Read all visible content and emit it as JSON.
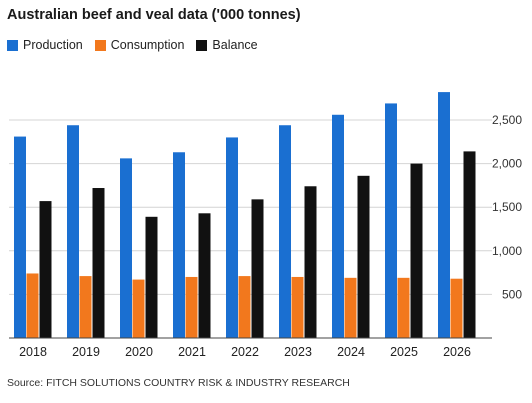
{
  "title": "Australian beef and veal data ('000 tonnes)",
  "source": "Source: FITCH SOLUTIONS COUNTRY RISK & INDUSTRY RESEARCH",
  "chart_data": {
    "type": "bar",
    "title": "Australian beef and veal data ('000 tonnes)",
    "xlabel": "",
    "ylabel": "",
    "categories": [
      "2018",
      "2019",
      "2020",
      "2021",
      "2022",
      "2023",
      "2024",
      "2025",
      "2026"
    ],
    "series": [
      {
        "name": "Production",
        "color": "#1a6fd1",
        "values": [
          2310,
          2440,
          2060,
          2130,
          2300,
          2440,
          2560,
          2690,
          2820
        ]
      },
      {
        "name": "Consumption",
        "color": "#f2781d",
        "values": [
          740,
          710,
          670,
          700,
          710,
          700,
          690,
          690,
          680
        ]
      },
      {
        "name": "Balance",
        "color": "#111111",
        "values": [
          1570,
          1720,
          1390,
          1430,
          1590,
          1740,
          1860,
          2000,
          2140
        ]
      }
    ],
    "ylim": [
      0,
      2800
    ],
    "yticks": [
      500,
      1000,
      1500,
      2000,
      2500
    ],
    "ytick_labels": [
      "500",
      "1,000",
      "1,500",
      "2,000",
      "2,500"
    ],
    "grid": true,
    "legend_position": "top-left",
    "y_axis_side": "right"
  }
}
